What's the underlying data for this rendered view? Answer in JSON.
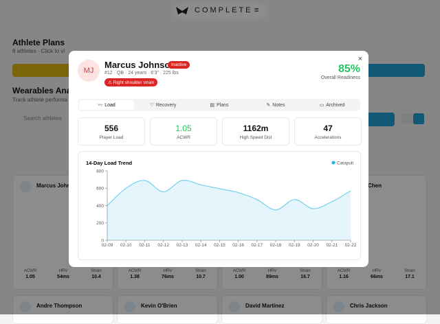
{
  "header": {
    "brand": "COMPLETE"
  },
  "background": {
    "plans_title": "Athlete Plans",
    "plans_subtitle": "8 athletes · Click to vi",
    "wearables_title": "Wearables Ana",
    "wearables_subtitle": "Track athlete performa",
    "search_placeholder": "Search athletes",
    "top_cards": [
      {
        "name": "Marcus Johns",
        "stats": [
          {
            "label": "ACWR",
            "value": "1.05"
          },
          {
            "label": "HRV",
            "value": "54ms"
          },
          {
            "label": "Strain",
            "value": "10.4"
          }
        ]
      },
      {
        "stats": [
          {
            "label": "ACWR",
            "value": "1.38"
          },
          {
            "label": "HRV",
            "value": "76ms"
          },
          {
            "label": "Strain",
            "value": "10.7"
          }
        ]
      },
      {
        "stats": [
          {
            "label": "ACWR",
            "value": "1.00"
          },
          {
            "label": "HRV",
            "value": "89ms"
          },
          {
            "label": "Strain",
            "value": "16.7"
          }
        ]
      },
      {
        "name": "Chen",
        "stats": [
          {
            "label": "ACWR",
            "value": "1.16"
          },
          {
            "label": "HRV",
            "value": "66ms"
          },
          {
            "label": "Strain",
            "value": "17.1"
          }
        ]
      }
    ],
    "bottom_cards": [
      "Andre Thompson",
      "Kevin O'Brien",
      "David Martinez",
      "Chris Jackson"
    ]
  },
  "modal": {
    "initials": "MJ",
    "name": "Marcus Johnson",
    "status": "Inactive",
    "meta": "#12 · QB · 24 years · 6'3\" · 225 lbs",
    "injury": "Right shoulder strain",
    "readiness": "85%",
    "readiness_label": "Overall Readiness",
    "close": "×",
    "tabs": [
      "Load",
      "Recovery",
      "Plans",
      "Notes",
      "Archived"
    ],
    "stats": [
      {
        "value": "556",
        "label": "Player Load"
      },
      {
        "value": "1.05",
        "label": "ACWR"
      },
      {
        "value": "1162m",
        "label": "High Speed Dist"
      },
      {
        "value": "47",
        "label": "Accelerations"
      }
    ],
    "chart": {
      "type": "line",
      "title": "14-Day Load Trend",
      "x": [
        "02-09",
        "02-10",
        "02-11",
        "02-12",
        "02-13",
        "02-14",
        "02-15",
        "02-16",
        "02-17",
        "02-18",
        "02-19",
        "02-20",
        "02-21",
        "02-22"
      ],
      "series": [
        {
          "name": "Catapult",
          "color": "#1fb5e0",
          "values": [
            400,
            600,
            690,
            560,
            690,
            640,
            595,
            550,
            470,
            350,
            470,
            365,
            445,
            570
          ]
        }
      ],
      "ylim": [
        0,
        800
      ],
      "yticks": [
        0,
        200,
        400,
        600,
        800
      ]
    }
  }
}
